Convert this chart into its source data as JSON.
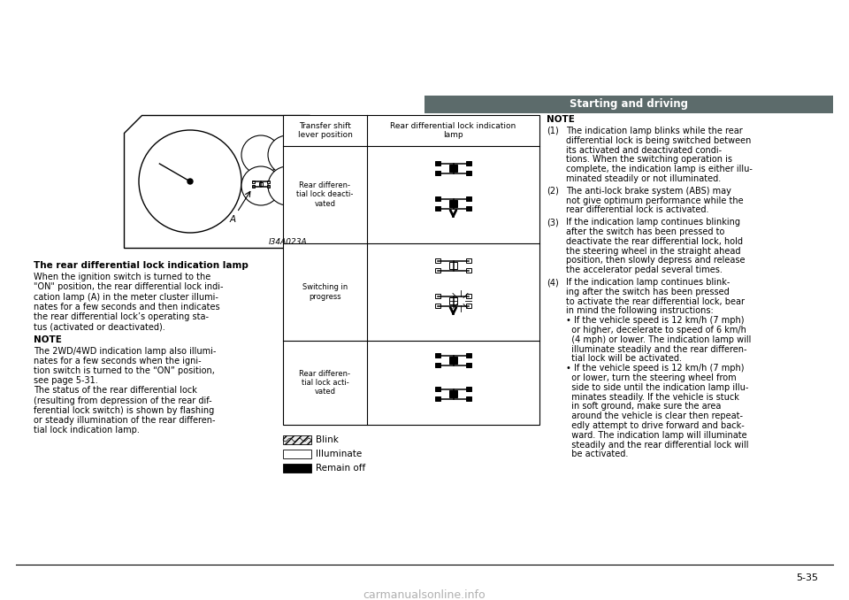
{
  "page_bg": "#ffffff",
  "header_bg": "#5c6b6b",
  "header_text": "Starting and driving",
  "header_text_color": "#ffffff",
  "page_number": "5-35",
  "watermark": "carmanualsonline.info",
  "left_col_bold": "The rear differential lock indication lamp",
  "left_col_para": "When the ignition switch is turned to the\n\"ON\" position, the rear differential lock indi-\ncation lamp (A) in the meter cluster illumi-\nnates for a few seconds and then indicates\nthe rear differential lock’s operating sta-\ntus (activated or deactivated).",
  "left_note_title": "NOTE",
  "left_note_body": "The 2WD/4WD indication lamp also illumi-\nnates for a few seconds when the igni-\ntion switch is turned to the “ON” position,\nsee page 5-31.\nThe status of the rear differential lock\n(resulting from depression of the rear dif-\nferential lock switch) is shown by flashing\nor steady illumination of the rear differen-\ntial lock indication lamp.",
  "right_note_title": "NOTE",
  "right_items": [
    {
      "num": "(1)",
      "text": "The indication lamp blinks while the rear\ndifferential lock is being switched between\nits activated and deactivated condi-\ntions. When the switching operation is\ncomplete, the indication lamp is either illu-\nminated steadily or not illuminated."
    },
    {
      "num": "(2)",
      "text": "The anti-lock brake system (ABS) may\nnot give optimum performance while the\nrear differential lock is activated."
    },
    {
      "num": "(3)",
      "text": "If the indication lamp continues blinking\nafter the switch has been pressed to\ndeactivate the rear differential lock, hold\nthe steering wheel in the straight ahead\nposition, then slowly depress and release\nthe accelerator pedal several times."
    },
    {
      "num": "(4)",
      "text": "If the indication lamp continues blink-\ning after the switch has been pressed\nto activate the rear differential lock, bear\nin mind the following instructions:\n• If the vehicle speed is 12 km/h (7 mph)\n  or higher, decelerate to speed of 6 km/h\n  (4 mph) or lower. The indication lamp will\n  illuminate steadily and the rear differen-\n  tial lock will be activated.\n• If the vehicle speed is 12 km/h (7 mph)\n  or lower, turn the steering wheel from\n  side to side until the indication lamp illu-\n  minates steadily. If the vehicle is stuck\n  in soft ground, make sure the area\n  around the vehicle is clear then repeat-\n  edly attempt to drive forward and back-\n  ward. The indication lamp will illuminate\n  steadily and the rear differential lock will\n  be activated."
    }
  ],
  "tbl_col1_header": "Transfer shift\nlever position",
  "tbl_col2_header": "Rear differential lock indication\nlamp",
  "tbl_rows": [
    "Rear differen-\ntial lock deacti-\nvated",
    "Switching in\nprogress",
    "Rear differen-\ntial lock acti-\nvated"
  ],
  "legend_items": [
    "Blink",
    "Illuminate",
    "Remain off"
  ],
  "diagram_code": "I34A023A"
}
